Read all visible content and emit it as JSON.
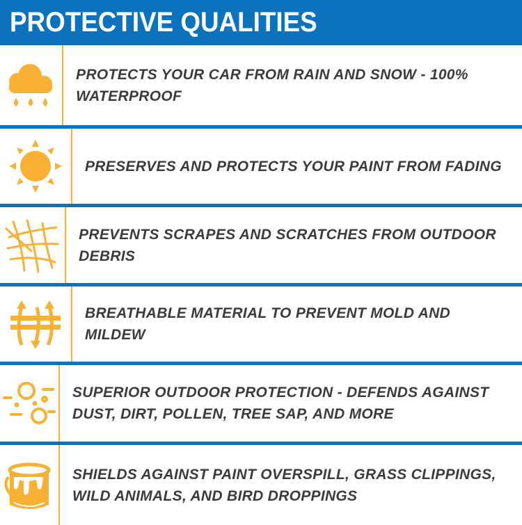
{
  "header": {
    "title": "PROTECTIVE QUALITIES"
  },
  "colors": {
    "blue": "#0b72bd",
    "orange": "#f8b133",
    "text": "#3b3b3d"
  },
  "items": [
    {
      "icon": "cloud-rain-icon",
      "text": "PROTECTS YOUR CAR FROM RAIN AND SNOW - 100% WATERPROOF"
    },
    {
      "icon": "sun-icon",
      "text": "PRESERVES AND PROTECTS YOUR PAINT FROM FADING"
    },
    {
      "icon": "scratch-mesh-icon",
      "text": "PREVENTS SCRAPES AND SCRATCHES FROM OUTDOOR DEBRIS"
    },
    {
      "icon": "breathable-arrows-icon",
      "text": "BREATHABLE MATERIAL TO PREVENT MOLD AND MILDEW"
    },
    {
      "icon": "dust-particles-icon",
      "text": "SUPERIOR OUTDOOR PROTECTION - DEFENDS AGAINST DUST, DIRT, POLLEN, TREE SAP, AND MORE"
    },
    {
      "icon": "paint-bucket-icon",
      "text": "SHIELDS AGAINST PAINT OVERSPILL, GRASS CLIPPINGS, WILD ANIMALS, AND BIRD DROPPINGS"
    }
  ]
}
